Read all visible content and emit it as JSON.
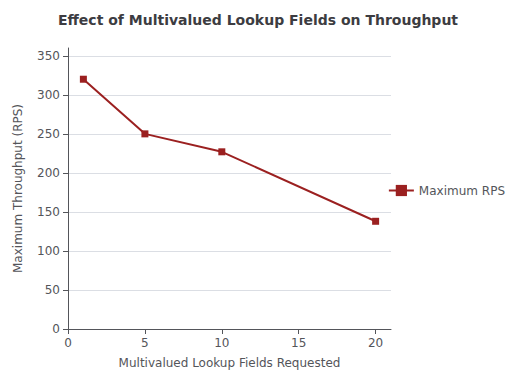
{
  "chart_data": {
    "type": "line",
    "title": "Effect of Multivalued Lookup Fields on Throughput",
    "xlabel": "Multivalued Lookup Fields Requested",
    "ylabel": "Maximum Throughput (RPS)",
    "x": [
      1,
      5,
      10,
      20
    ],
    "series": [
      {
        "name": "Maximum RPS",
        "color": "#9B2020",
        "marker": "square",
        "values": [
          320,
          250,
          227,
          138
        ]
      }
    ],
    "xlim": [
      0,
      21
    ],
    "ylim": [
      0,
      360
    ],
    "xticks": [
      0,
      5,
      10,
      15,
      20
    ],
    "yticks": [
      0,
      50,
      100,
      150,
      200,
      250,
      300,
      350
    ],
    "grid": "y",
    "legend": "right"
  }
}
